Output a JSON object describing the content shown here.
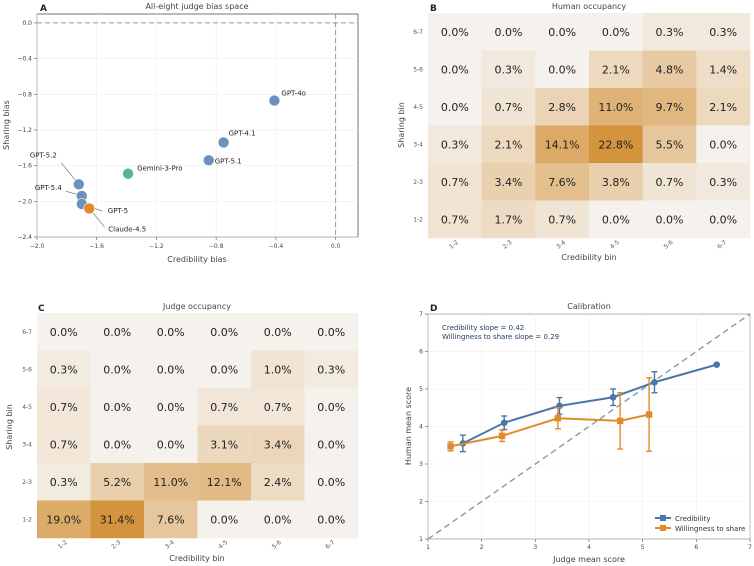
{
  "colors": {
    "blue": "#4a76a8",
    "orange": "#e08a2c",
    "green": "#52b98f",
    "light_blue_point": "#6b91bf",
    "dashed": "#8c9db5",
    "axis": "#444444",
    "heat_low": "#f5f2ee",
    "heat_high": "#d4943d"
  },
  "chart_data": [
    {
      "type": "scatter",
      "panel_letter": "A",
      "title": "All-eight judge bias space",
      "xlabel": "Credibility bias",
      "ylabel": "Sharing bias",
      "xlim": [
        -2.0,
        0.15
      ],
      "ylim": [
        -2.4,
        0.1
      ],
      "xticks": [
        -2.0,
        -1.6,
        -1.2,
        -0.8,
        -0.4,
        0.0
      ],
      "xtick_labels": [
        "−2.0",
        "−1.6",
        "−1.2",
        "−0.8",
        "−0.4",
        "0.0"
      ],
      "yticks": [
        0.0,
        -0.4,
        -0.8,
        -1.2,
        -1.6,
        -2.0,
        -2.4
      ],
      "ytick_labels": [
        "0.0",
        "−0.4",
        "−0.8",
        "−1.2",
        "−1.6",
        "−2.0",
        "−2.4"
      ],
      "reference_lines": {
        "x": 0.0,
        "y": 0.0
      },
      "points": [
        {
          "label": "GPT-4o",
          "x": -0.41,
          "y": -0.87,
          "color": "light_blue_point"
        },
        {
          "label": "GPT-4.1",
          "x": -0.75,
          "y": -1.34,
          "color": "light_blue_point"
        },
        {
          "label": "GPT-5.1",
          "x": -0.85,
          "y": -1.54,
          "color": "light_blue_point"
        },
        {
          "label": "Gemini-3-Pro",
          "x": -1.39,
          "y": -1.69,
          "color": "green"
        },
        {
          "label": "GPT-5.2",
          "x": -1.72,
          "y": -1.81,
          "color": "light_blue_point"
        },
        {
          "label": "GPT-5.4",
          "x": -1.7,
          "y": -1.94,
          "color": "light_blue_point"
        },
        {
          "label": "GPT-5",
          "x": -1.7,
          "y": -2.03,
          "color": "light_blue_point"
        },
        {
          "label": "Claude-4.5",
          "x": -1.65,
          "y": -2.08,
          "color": "orange"
        }
      ]
    },
    {
      "type": "heatmap",
      "panel_letter": "B",
      "title": "Human occupancy",
      "xlabel": "Credibility bin",
      "ylabel": "Sharing bin",
      "x_categories": [
        "1-2",
        "2-3",
        "3-4",
        "4-5",
        "5-6",
        "6-7"
      ],
      "y_categories_top_to_bottom": [
        "6-7",
        "5-6",
        "4-5",
        "3-4",
        "2-3",
        "1-2"
      ],
      "vmax": 22.8,
      "values_top_to_bottom": [
        [
          0.0,
          0.0,
          0.0,
          0.0,
          0.3,
          0.3
        ],
        [
          0.0,
          0.3,
          0.0,
          2.1,
          4.8,
          1.4
        ],
        [
          0.0,
          0.7,
          2.8,
          11.0,
          9.7,
          2.1
        ],
        [
          0.3,
          2.1,
          14.1,
          22.8,
          5.5,
          0.0
        ],
        [
          0.7,
          3.4,
          7.6,
          3.8,
          0.7,
          0.3
        ],
        [
          0.7,
          1.7,
          0.7,
          0.0,
          0.0,
          0.0
        ]
      ],
      "labels_top_to_bottom": [
        [
          "0.0%",
          "0.0%",
          "0.0%",
          "0.0%",
          "0.3%",
          "0.3%"
        ],
        [
          "0.0%",
          "0.3%",
          "0.0%",
          "2.1%",
          "4.8%",
          "1.4%"
        ],
        [
          "0.0%",
          "0.7%",
          "2.8%",
          "11.0%",
          "9.7%",
          "2.1%"
        ],
        [
          "0.3%",
          "2.1%",
          "14.1%",
          "22.8%",
          "5.5%",
          "0.0%"
        ],
        [
          "0.7%",
          "3.4%",
          "7.6%",
          "3.8%",
          "0.7%",
          "0.3%"
        ],
        [
          "0.7%",
          "1.7%",
          "0.7%",
          "0.0%",
          "0.0%",
          "0.0%"
        ]
      ]
    },
    {
      "type": "heatmap",
      "panel_letter": "C",
      "title": "Judge occupancy",
      "xlabel": "Credibility bin",
      "ylabel": "Sharing bin",
      "x_categories": [
        "1-2",
        "2-3",
        "3-4",
        "4-5",
        "5-6",
        "6-7"
      ],
      "y_categories_top_to_bottom": [
        "6-7",
        "5-6",
        "4-5",
        "3-4",
        "2-3",
        "1-2"
      ],
      "vmax": 31.4,
      "values_top_to_bottom": [
        [
          0.0,
          0.0,
          0.0,
          0.0,
          0.0,
          0.0
        ],
        [
          0.3,
          0.0,
          0.0,
          0.0,
          1.0,
          0.3
        ],
        [
          0.7,
          0.0,
          0.0,
          0.7,
          0.7,
          0.0
        ],
        [
          0.7,
          0.0,
          0.0,
          3.1,
          3.4,
          0.0
        ],
        [
          0.3,
          5.2,
          11.0,
          12.1,
          2.4,
          0.0
        ],
        [
          19.0,
          31.4,
          7.6,
          0.0,
          0.0,
          0.0
        ]
      ],
      "labels_top_to_bottom": [
        [
          "0.0%",
          "0.0%",
          "0.0%",
          "0.0%",
          "0.0%",
          "0.0%"
        ],
        [
          "0.3%",
          "0.0%",
          "0.0%",
          "0.0%",
          "1.0%",
          "0.3%"
        ],
        [
          "0.7%",
          "0.0%",
          "0.0%",
          "0.7%",
          "0.7%",
          "0.0%"
        ],
        [
          "0.7%",
          "0.0%",
          "0.0%",
          "3.1%",
          "3.4%",
          "0.0%"
        ],
        [
          "0.3%",
          "5.2%",
          "11.0%",
          "12.1%",
          "2.4%",
          "0.0%"
        ],
        [
          "19.0%",
          "31.4%",
          "7.6%",
          "0.0%",
          "0.0%",
          "0.0%"
        ]
      ]
    },
    {
      "type": "line",
      "panel_letter": "D",
      "title": "Calibration",
      "xlabel": "Judge mean score",
      "ylabel": "Human mean score",
      "xlim": [
        1,
        7
      ],
      "ylim": [
        1,
        7
      ],
      "xticks": [
        1,
        2,
        3,
        4,
        5,
        6,
        7
      ],
      "yticks": [
        1,
        2,
        3,
        4,
        5,
        6,
        7
      ],
      "xtick_labels": [
        "1",
        "2",
        "3",
        "4",
        "5",
        "6",
        "7"
      ],
      "ytick_labels": [
        "1",
        "2",
        "3",
        "4",
        "5",
        "6",
        "7"
      ],
      "identity_line": true,
      "annotation_lines": [
        "Credibility slope = 0.42",
        "Willingness to share slope = 0.29"
      ],
      "legend_position": "bottom-right",
      "series": [
        {
          "name": "Credibility",
          "color": "blue",
          "x": [
            1.65,
            2.42,
            3.45,
            4.45,
            5.22,
            6.38
          ],
          "y": [
            3.55,
            4.1,
            4.55,
            4.78,
            5.18,
            5.65
          ],
          "err": [
            0.22,
            0.18,
            0.22,
            0.22,
            0.28,
            0.0
          ]
        },
        {
          "name": "Willingness to share",
          "color": "orange",
          "x": [
            1.42,
            2.38,
            3.42,
            4.58,
            5.12
          ],
          "y": [
            3.47,
            3.75,
            4.22,
            4.15,
            4.32
          ],
          "err": [
            0.12,
            0.15,
            0.28,
            0.75,
            0.98
          ]
        }
      ]
    }
  ]
}
